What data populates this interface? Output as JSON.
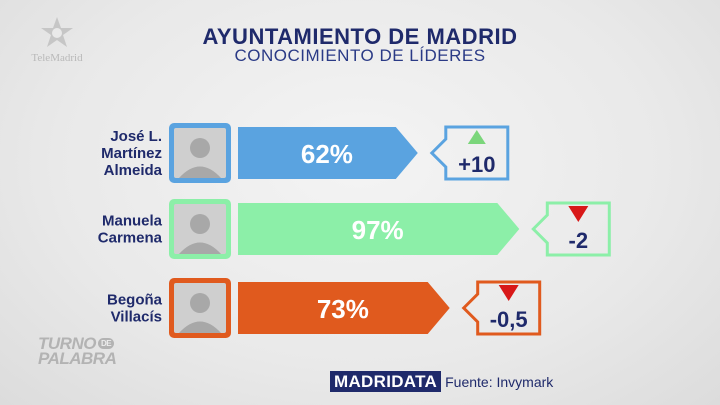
{
  "header": {
    "title": "AYUNTAMIENTO DE MADRID",
    "subtitle": "CONOCIMIENTO DE LÍDERES",
    "channel_logo_text": "TeleMadrid"
  },
  "footer": {
    "program_logo_line1": "TURNO",
    "program_logo_badge": "DE",
    "program_logo_line2": "PALABRA",
    "brand": "MADRIDATA",
    "source": "Fuente: Invymark"
  },
  "chart_data": {
    "type": "bar",
    "orientation": "horizontal",
    "categories": [
      "José L. Martínez Almeida",
      "Manuela Carmena",
      "Begoña Villacís"
    ],
    "category_lines": [
      [
        "José L.",
        "Martínez",
        "Almeida"
      ],
      [
        "Manuela",
        "Carmena"
      ],
      [
        "Begoña",
        "Villacís"
      ]
    ],
    "values": [
      62,
      97,
      73
    ],
    "value_labels": [
      "62%",
      "97%",
      "73%"
    ],
    "changes": [
      "+10",
      "-2",
      "-0,5"
    ],
    "change_directions": [
      "up",
      "down",
      "down"
    ],
    "colors": [
      "#5aa3e0",
      "#8cefa8",
      "#e05a1e"
    ],
    "change_colors": {
      "up": "#7bd67b",
      "down": "#d81818"
    },
    "xlim": [
      0,
      100
    ]
  }
}
